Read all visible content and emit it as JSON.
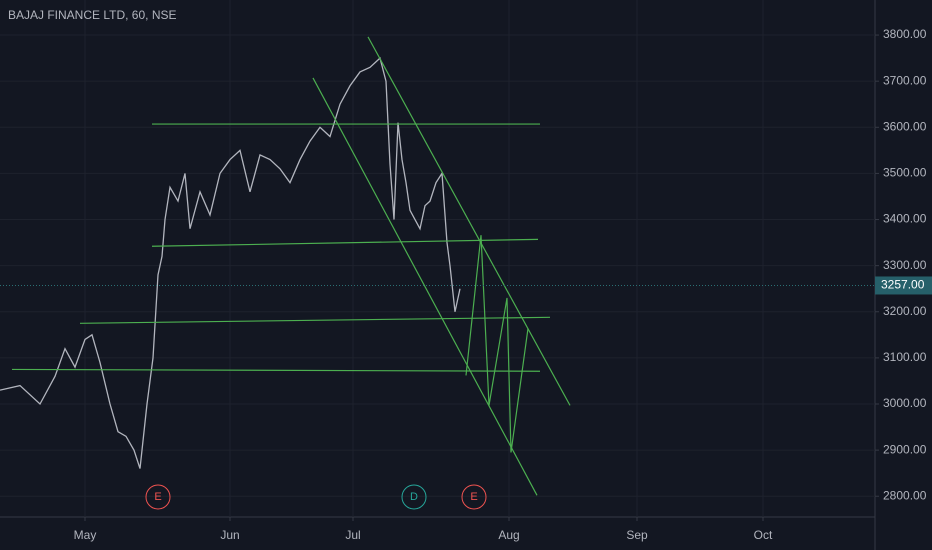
{
  "chart_data": {
    "type": "line",
    "title": "BAJAJ FINANCE LTD, 60, NSE",
    "x": [
      0,
      20,
      40,
      55,
      65,
      75,
      85,
      92,
      100,
      110,
      118,
      126,
      134,
      140,
      147,
      153,
      158,
      162,
      165,
      170,
      178,
      185,
      190,
      200,
      210,
      220,
      230,
      240,
      250,
      260,
      270,
      280,
      290,
      300,
      310,
      320,
      330,
      340,
      350,
      360,
      370,
      380,
      386,
      390,
      394,
      398,
      402,
      406,
      410,
      415,
      420,
      425,
      430,
      436,
      442,
      447,
      450,
      455,
      460
    ],
    "series": [
      {
        "color": "#b2b5be",
        "values": [
          3030,
          3040,
          3000,
          3060,
          3120,
          3080,
          3140,
          3150,
          3090,
          3000,
          2940,
          2930,
          2900,
          2860,
          3000,
          3100,
          3280,
          3320,
          3400,
          3470,
          3440,
          3500,
          3380,
          3460,
          3410,
          3500,
          3530,
          3550,
          3460,
          3540,
          3530,
          3510,
          3480,
          3530,
          3570,
          3600,
          3580,
          3650,
          3690,
          3720,
          3730,
          3750,
          3700,
          3520,
          3400,
          3610,
          3530,
          3480,
          3420,
          3400,
          3380,
          3430,
          3440,
          3480,
          3500,
          3350,
          3300,
          3200,
          3250
        ]
      }
    ],
    "xlim": [
      0,
      875
    ],
    "xticks": [
      {
        "value": 85,
        "label": "May"
      },
      {
        "value": 230,
        "label": "Jun"
      },
      {
        "value": 353,
        "label": "Jul"
      },
      {
        "value": 509,
        "label": "Aug"
      },
      {
        "value": 637,
        "label": "Sep"
      },
      {
        "value": 763,
        "label": "Oct"
      }
    ],
    "ylim": [
      2755,
      3876
    ],
    "yticks": [
      {
        "value": 2800,
        "label": "2800.00"
      },
      {
        "value": 2900,
        "label": "2900.00"
      },
      {
        "value": 3000,
        "label": "3000.00"
      },
      {
        "value": 3100,
        "label": "3100.00"
      },
      {
        "value": 3200,
        "label": "3200.00"
      },
      {
        "value": 3300,
        "label": "3300.00"
      },
      {
        "value": 3400,
        "label": "3400.00"
      },
      {
        "value": 3500,
        "label": "3500.00"
      },
      {
        "value": 3600,
        "label": "3600.00"
      },
      {
        "value": 3700,
        "label": "3700.00"
      },
      {
        "value": 3800,
        "label": "3800.00"
      }
    ],
    "grid": true,
    "last_price": {
      "value": 3257,
      "label": "3257.00"
    },
    "trendline_color": "#4caf50",
    "trendlines": [
      {
        "x": [
          152,
          540
        ],
        "y": [
          3607,
          3607
        ]
      },
      {
        "x": [
          152,
          538
        ],
        "y": [
          3342,
          3357
        ]
      },
      {
        "x": [
          80,
          550
        ],
        "y": [
          3175,
          3188
        ]
      },
      {
        "x": [
          12,
          540
        ],
        "y": [
          3075,
          3071
        ]
      },
      {
        "x": [
          313,
          537
        ],
        "y": [
          3707,
          2802
        ]
      },
      {
        "x": [
          368,
          570
        ],
        "y": [
          3796,
          2997
        ]
      },
      {
        "x": [
          466,
          481,
          489,
          507,
          511,
          528
        ],
        "y": [
          3062,
          3366,
          2997,
          3230,
          2895,
          3164
        ]
      }
    ],
    "events": [
      {
        "x": 158,
        "label": "E"
      },
      {
        "x": 414,
        "label": "D"
      },
      {
        "x": 474,
        "label": "E"
      }
    ]
  }
}
